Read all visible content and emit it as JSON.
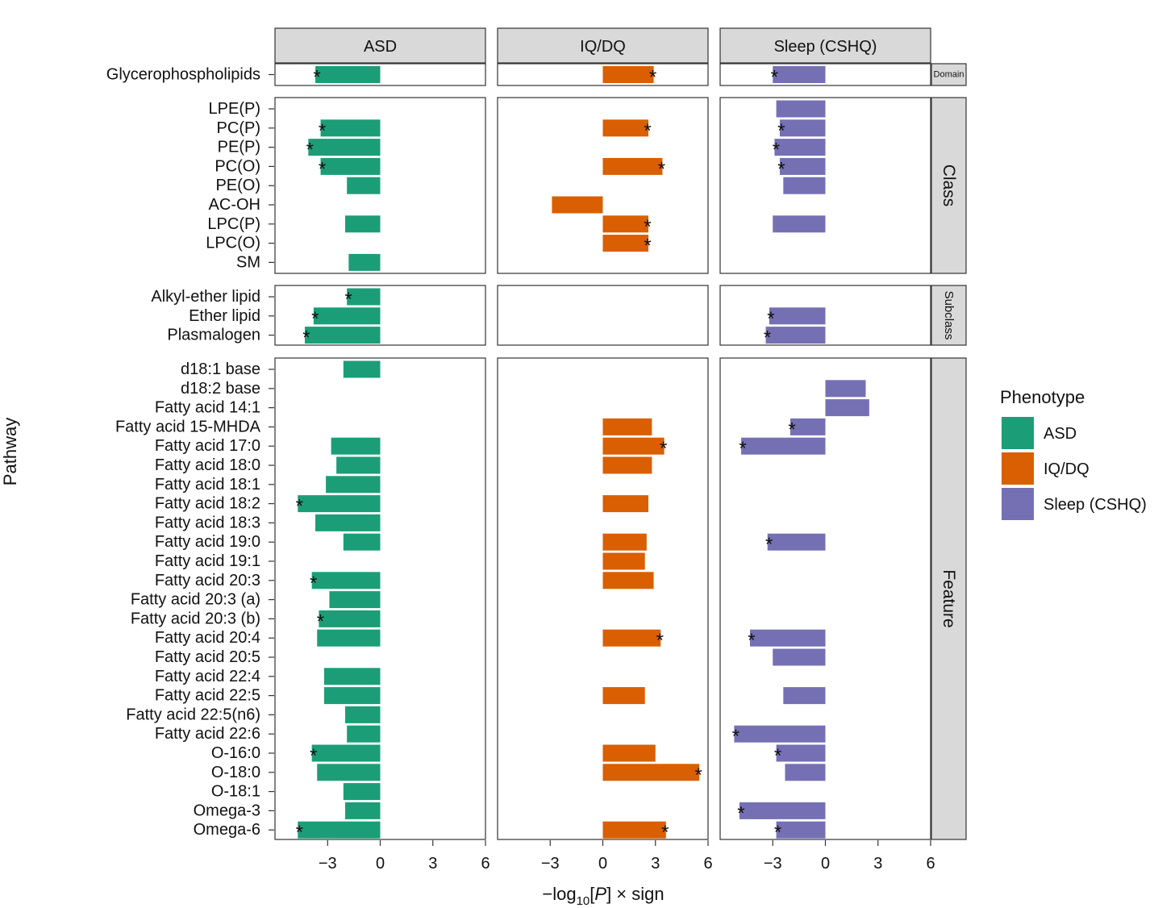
{
  "chart_data": {
    "type": "bar",
    "orientation": "horizontal",
    "facets": [
      "ASD",
      "IQ/DQ",
      "Sleep (CSHQ)"
    ],
    "rows": [
      {
        "name": "Domain",
        "categories": [
          "Glycerophospholipids"
        ]
      },
      {
        "name": "Class",
        "categories": [
          "LPE(P)",
          "PC(P)",
          "PE(P)",
          "PC(O)",
          "PE(O)",
          "AC-OH",
          "LPC(P)",
          "LPC(O)",
          "SM"
        ]
      },
      {
        "name": "Subclass",
        "categories": [
          "Alkyl-ether lipid",
          "Ether lipid",
          "Plasmalogen"
        ]
      },
      {
        "name": "Feature",
        "categories": [
          "d18:1 base",
          "d18:2 base",
          "Fatty acid 14:1",
          "Fatty acid 15-MHDA",
          "Fatty acid 17:0",
          "Fatty acid 18:0",
          "Fatty acid 18:1",
          "Fatty acid 18:2",
          "Fatty acid 18:3",
          "Fatty acid 19:0",
          "Fatty acid 19:1",
          "Fatty acid 20:3",
          "Fatty acid 20:3 (a)",
          "Fatty acid 20:3 (b)",
          "Fatty acid 20:4",
          "Fatty acid 20:5",
          "Fatty acid 22:4",
          "Fatty acid 22:5",
          "Fatty acid 22:5(n6)",
          "Fatty acid 22:6",
          "O-16:0",
          "O-18:0",
          "O-18:1",
          "Omega-3",
          "Omega-6"
        ]
      }
    ],
    "series": [
      {
        "name": "ASD",
        "color": "#1b9e77",
        "values": [
          [
            -3.7
          ],
          [
            null,
            -3.4,
            -4.1,
            -3.4,
            -1.9,
            null,
            -2.0,
            null,
            -1.8
          ],
          [
            -1.9,
            -3.8,
            -4.3
          ],
          [
            -2.1,
            null,
            null,
            null,
            -2.8,
            -2.5,
            -3.1,
            -4.7,
            -3.7,
            -2.1,
            null,
            -3.9,
            -2.9,
            -3.5,
            -3.6,
            null,
            -3.2,
            -3.2,
            -2.0,
            -1.9,
            -3.9,
            -3.6,
            -2.1,
            -2.0,
            -4.7
          ]
        ],
        "significant": [
          [
            true
          ],
          [
            false,
            true,
            true,
            true,
            false,
            false,
            false,
            false,
            false
          ],
          [
            true,
            true,
            true
          ],
          [
            false,
            false,
            false,
            false,
            false,
            false,
            false,
            true,
            false,
            false,
            false,
            true,
            false,
            true,
            false,
            false,
            false,
            false,
            false,
            false,
            true,
            false,
            false,
            false,
            true
          ]
        ]
      },
      {
        "name": "IQ/DQ",
        "color": "#d95f02",
        "values": [
          [
            2.9
          ],
          [
            null,
            2.6,
            null,
            3.4,
            null,
            -2.9,
            2.6,
            2.6,
            null
          ],
          [
            null,
            null,
            null
          ],
          [
            null,
            null,
            null,
            2.8,
            3.5,
            2.8,
            null,
            2.6,
            null,
            2.5,
            2.4,
            2.9,
            null,
            null,
            3.3,
            null,
            null,
            2.4,
            null,
            null,
            3.0,
            5.5,
            null,
            null,
            3.6
          ]
        ],
        "significant": [
          [
            true
          ],
          [
            false,
            true,
            false,
            true,
            false,
            false,
            true,
            true,
            false
          ],
          [
            false,
            false,
            false
          ],
          [
            false,
            false,
            false,
            false,
            true,
            false,
            false,
            false,
            false,
            false,
            false,
            false,
            false,
            false,
            true,
            false,
            false,
            false,
            false,
            false,
            false,
            true,
            false,
            false,
            true
          ]
        ]
      },
      {
        "name": "Sleep (CSHQ)",
        "color": "#7570b3",
        "values": [
          [
            -3.0
          ],
          [
            -2.8,
            -2.6,
            -2.9,
            -2.6,
            -2.4,
            null,
            -3.0,
            null,
            null
          ],
          [
            null,
            -3.2,
            -3.4
          ],
          [
            null,
            2.3,
            2.5,
            -2.0,
            -4.8,
            null,
            null,
            null,
            null,
            -3.3,
            null,
            null,
            null,
            null,
            -4.3,
            -3.0,
            null,
            -2.4,
            null,
            -5.2,
            -2.8,
            -2.3,
            null,
            -4.9,
            -2.8
          ]
        ],
        "significant": [
          [
            true
          ],
          [
            false,
            true,
            true,
            true,
            false,
            false,
            false,
            false,
            false
          ],
          [
            false,
            true,
            true
          ],
          [
            false,
            false,
            false,
            true,
            true,
            false,
            false,
            false,
            false,
            true,
            false,
            false,
            false,
            false,
            true,
            false,
            false,
            false,
            false,
            true,
            true,
            false,
            false,
            true,
            true
          ]
        ]
      }
    ],
    "xticks": [
      "−3",
      "0",
      "3",
      "6"
    ],
    "xtick_values": [
      -3,
      0,
      3,
      6
    ],
    "xlim": [
      -6,
      6
    ],
    "xlabel_parts": [
      "−log",
      "10",
      "[",
      "P",
      "] × sign"
    ],
    "ylabel": "Pathway",
    "significance_marker": "*",
    "legend": {
      "title": "Phenotype",
      "entries": [
        "ASD",
        "IQ/DQ",
        "Sleep (CSHQ)"
      ],
      "placement": "right"
    }
  }
}
